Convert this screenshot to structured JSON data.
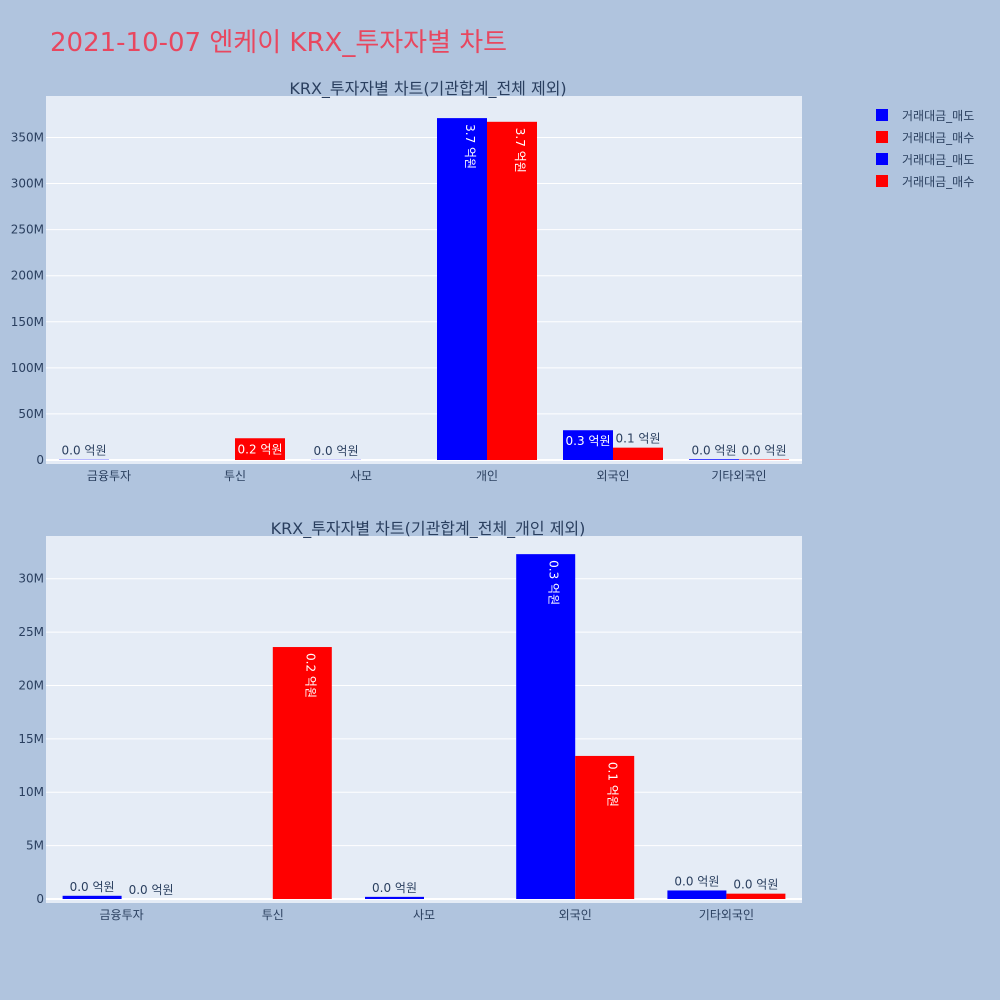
{
  "page": {
    "title": "2021-10-07 엔케이 KRX_투자자별 차트"
  },
  "colors": {
    "sell": "#0000ff",
    "buy": "#ff0000",
    "plot_bg": "#e5ecf6",
    "page_bg": "#b0c4de",
    "axis_text": "#2a3f5f",
    "title": "#e8475f"
  },
  "legend": [
    {
      "label": "거래대금_매도",
      "color": "#0000ff"
    },
    {
      "label": "거래대금_매수",
      "color": "#ff0000"
    },
    {
      "label": "거래대금_매도",
      "color": "#0000ff"
    },
    {
      "label": "거래대금_매수",
      "color": "#ff0000"
    }
  ],
  "chart_data": [
    {
      "type": "bar",
      "title": "KRX_투자자별 차트(기관합계_전체 제외)",
      "categories": [
        "금융투자",
        "투신",
        "사모",
        "개인",
        "외국인",
        "기타외국인"
      ],
      "series": [
        {
          "name": "거래대금_매도",
          "color": "#0000ff",
          "values": [
            300000,
            0,
            200000,
            371000000,
            32300000,
            800000
          ],
          "labels": [
            "0.0 억원",
            "",
            "0.0 억원",
            "3.7 억원",
            "0.3 억원",
            "0.0 억원"
          ]
        },
        {
          "name": "거래대금_매수",
          "color": "#ff0000",
          "values": [
            0,
            23600000,
            0,
            367000000,
            13400000,
            500000
          ],
          "labels": [
            "",
            "0.2 억원",
            "",
            "3.7 억원",
            "0.1 억원",
            "0.0 억원"
          ]
        }
      ],
      "ylim": [
        0,
        395000000
      ],
      "yticks": [
        0,
        50000000,
        100000000,
        150000000,
        200000000,
        250000000,
        300000000,
        350000000
      ],
      "ytick_labels": [
        "0",
        "50M",
        "100M",
        "150M",
        "200M",
        "250M",
        "300M",
        "350M"
      ],
      "grid": true,
      "legend_position": "top-right"
    },
    {
      "type": "bar",
      "title": "KRX_투자자별 차트(기관합계_전체_개인 제외)",
      "categories": [
        "금융투자",
        "투신",
        "사모",
        "외국인",
        "기타외국인"
      ],
      "series": [
        {
          "name": "거래대금_매도",
          "color": "#0000ff",
          "values": [
            300000,
            0,
            200000,
            32300000,
            800000
          ],
          "labels": [
            "0.0 억원",
            "",
            "0.0 억원",
            "0.3 억원",
            "0.0 억원"
          ]
        },
        {
          "name": "거래대금_매수",
          "color": "#ff0000",
          "values": [
            0,
            23600000,
            0,
            13400000,
            500000
          ],
          "labels": [
            "0.0 억원",
            "0.2 억원",
            "",
            "0.1 억원",
            "0.0 억원"
          ]
        }
      ],
      "ylim": [
        0,
        34000000
      ],
      "yticks": [
        0,
        5000000,
        10000000,
        15000000,
        20000000,
        25000000,
        30000000
      ],
      "ytick_labels": [
        "0",
        "5M",
        "10M",
        "15M",
        "20M",
        "25M",
        "30M"
      ],
      "grid": true,
      "legend_position": "top-right"
    }
  ]
}
